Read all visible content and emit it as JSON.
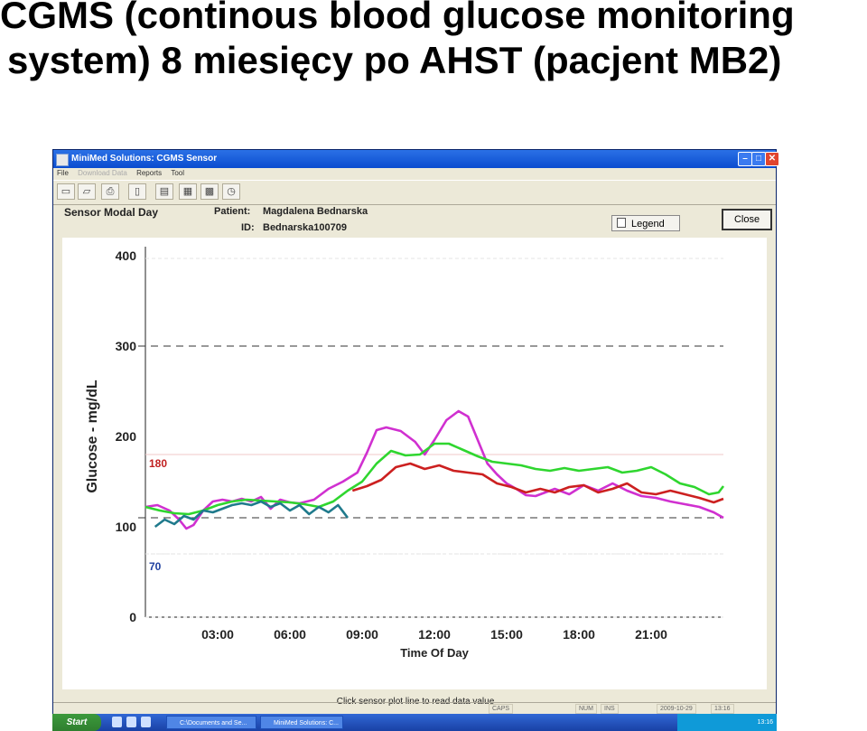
{
  "slide": {
    "title_line1": "CGMS (continous blood glucose monitoring",
    "title_line2": "system) 8 miesięcy po AHST (pacjent MB2)"
  },
  "window": {
    "title": "MiniMed Solutions: CGMS Sensor",
    "controls": [
      "minimize-icon",
      "maximize-icon",
      "close-icon"
    ],
    "menu": [
      {
        "label": "File",
        "enabled": true
      },
      {
        "label": "Download Data",
        "enabled": false
      },
      {
        "label": "Reports",
        "enabled": true
      },
      {
        "label": "Tool",
        "enabled": true
      }
    ],
    "toolbar_icons": [
      "new-document-icon",
      "open-folder-icon",
      "print-icon",
      "device-icon",
      "report-icon",
      "table-icon",
      "graph-icon",
      "clock-icon"
    ]
  },
  "header": {
    "view_title": "Sensor Modal Day",
    "patient_label": "Patient:",
    "patient_value": "Magdalena Bednarska",
    "id_label": "ID:",
    "id_value": "Bednarska100709",
    "legend_button": "Legend",
    "close_button": "Close"
  },
  "chart_data": {
    "type": "line",
    "ylabel": "Glucose - mg/dL",
    "xlabel": "Time Of Day",
    "yticks": [
      0,
      100,
      200,
      300,
      400
    ],
    "ylim": [
      0,
      400
    ],
    "xticks": [
      "03:00",
      "06:00",
      "09:00",
      "12:00",
      "15:00",
      "18:00",
      "21:00"
    ],
    "xlim_hours": [
      0,
      24
    ],
    "target_high_label": "180",
    "target_low_label": "70",
    "target_high": 180,
    "target_low": 70,
    "reference_lines_dashed": [
      300,
      110
    ],
    "series": [
      {
        "color": "#d030d0",
        "points": [
          [
            0,
            122
          ],
          [
            0.5,
            124
          ],
          [
            1,
            118
          ],
          [
            1.4,
            108
          ],
          [
            1.7,
            98
          ],
          [
            2,
            102
          ],
          [
            2.4,
            118
          ],
          [
            2.8,
            128
          ],
          [
            3.2,
            130
          ],
          [
            3.6,
            128
          ],
          [
            4,
            131
          ],
          [
            4.4,
            128
          ],
          [
            4.8,
            133
          ],
          [
            5.2,
            120
          ],
          [
            5.6,
            130
          ],
          [
            6,
            127
          ],
          [
            6.4,
            126
          ],
          [
            7,
            130
          ],
          [
            7.6,
            142
          ],
          [
            8.2,
            150
          ],
          [
            8.8,
            160
          ],
          [
            9.2,
            182
          ],
          [
            9.6,
            207
          ],
          [
            10,
            210
          ],
          [
            10.6,
            206
          ],
          [
            11.2,
            194
          ],
          [
            11.6,
            180
          ],
          [
            12,
            196
          ],
          [
            12.5,
            218
          ],
          [
            13,
            228
          ],
          [
            13.4,
            222
          ],
          [
            13.8,
            196
          ],
          [
            14.2,
            170
          ],
          [
            14.6,
            158
          ],
          [
            15,
            148
          ],
          [
            15.4,
            142
          ],
          [
            15.8,
            135
          ],
          [
            16.2,
            134
          ],
          [
            16.6,
            138
          ],
          [
            17,
            142
          ],
          [
            17.6,
            136
          ],
          [
            18.2,
            146
          ],
          [
            18.8,
            140
          ],
          [
            19.4,
            148
          ],
          [
            20,
            140
          ],
          [
            20.6,
            134
          ],
          [
            21.2,
            132
          ],
          [
            21.8,
            128
          ],
          [
            22.4,
            125
          ],
          [
            23,
            122
          ],
          [
            23.6,
            116
          ],
          [
            24,
            110
          ]
        ]
      },
      {
        "color": "#2fd62f",
        "points": [
          [
            0,
            122
          ],
          [
            0.6,
            118
          ],
          [
            1.2,
            115
          ],
          [
            1.8,
            114
          ],
          [
            2.4,
            118
          ],
          [
            3,
            124
          ],
          [
            3.6,
            128
          ],
          [
            4.2,
            130
          ],
          [
            4.8,
            129
          ],
          [
            5.4,
            128
          ],
          [
            6,
            127
          ],
          [
            6.6,
            125
          ],
          [
            7.2,
            122
          ],
          [
            7.8,
            128
          ],
          [
            8.4,
            140
          ],
          [
            9,
            150
          ],
          [
            9.6,
            170
          ],
          [
            10.2,
            184
          ],
          [
            10.8,
            179
          ],
          [
            11.4,
            180
          ],
          [
            12,
            192
          ],
          [
            12.6,
            192
          ],
          [
            13.2,
            185
          ],
          [
            13.8,
            178
          ],
          [
            14.4,
            172
          ],
          [
            15,
            170
          ],
          [
            15.6,
            168
          ],
          [
            16.2,
            164
          ],
          [
            16.8,
            162
          ],
          [
            17.4,
            165
          ],
          [
            18,
            162
          ],
          [
            18.6,
            164
          ],
          [
            19.2,
            166
          ],
          [
            19.8,
            160
          ],
          [
            20.4,
            162
          ],
          [
            21,
            166
          ],
          [
            21.6,
            158
          ],
          [
            22.2,
            148
          ],
          [
            22.8,
            144
          ],
          [
            23.4,
            136
          ],
          [
            23.8,
            138
          ],
          [
            24,
            145
          ]
        ]
      },
      {
        "color": "#cc2020",
        "points": [
          [
            8.6,
            140
          ],
          [
            9.2,
            145
          ],
          [
            9.8,
            152
          ],
          [
            10.4,
            166
          ],
          [
            11,
            170
          ],
          [
            11.6,
            164
          ],
          [
            12.2,
            168
          ],
          [
            12.8,
            162
          ],
          [
            13.4,
            160
          ],
          [
            14,
            158
          ],
          [
            14.6,
            148
          ],
          [
            15.2,
            144
          ],
          [
            15.8,
            138
          ],
          [
            16.4,
            142
          ],
          [
            17,
            138
          ],
          [
            17.6,
            144
          ],
          [
            18.2,
            146
          ],
          [
            18.8,
            138
          ],
          [
            19.4,
            142
          ],
          [
            20,
            148
          ],
          [
            20.6,
            138
          ],
          [
            21.2,
            136
          ],
          [
            21.8,
            140
          ],
          [
            22.4,
            136
          ],
          [
            23,
            132
          ],
          [
            23.6,
            127
          ],
          [
            24,
            131
          ]
        ]
      },
      {
        "color": "#1f7a8c",
        "points": [
          [
            0.4,
            100
          ],
          [
            0.8,
            108
          ],
          [
            1.2,
            103
          ],
          [
            1.6,
            112
          ],
          [
            2,
            108
          ],
          [
            2.4,
            118
          ],
          [
            2.8,
            116
          ],
          [
            3.2,
            120
          ],
          [
            3.6,
            124
          ],
          [
            4,
            126
          ],
          [
            4.4,
            124
          ],
          [
            4.8,
            128
          ],
          [
            5.2,
            122
          ],
          [
            5.6,
            126
          ],
          [
            6,
            118
          ],
          [
            6.4,
            124
          ],
          [
            6.8,
            114
          ],
          [
            7.2,
            122
          ],
          [
            7.6,
            116
          ],
          [
            8,
            124
          ],
          [
            8.4,
            110
          ]
        ]
      }
    ]
  },
  "footer": {
    "hint": "Click sensor plot line to read data value",
    "status": [
      "CAPS",
      "NUM",
      "INS",
      "2009-10-29",
      "13:16"
    ]
  },
  "taskbar": {
    "start": "Start",
    "tasks": [
      "C:\\Documents and Se...",
      "MiniMed Solutions: C..."
    ],
    "clock": "13:16"
  }
}
